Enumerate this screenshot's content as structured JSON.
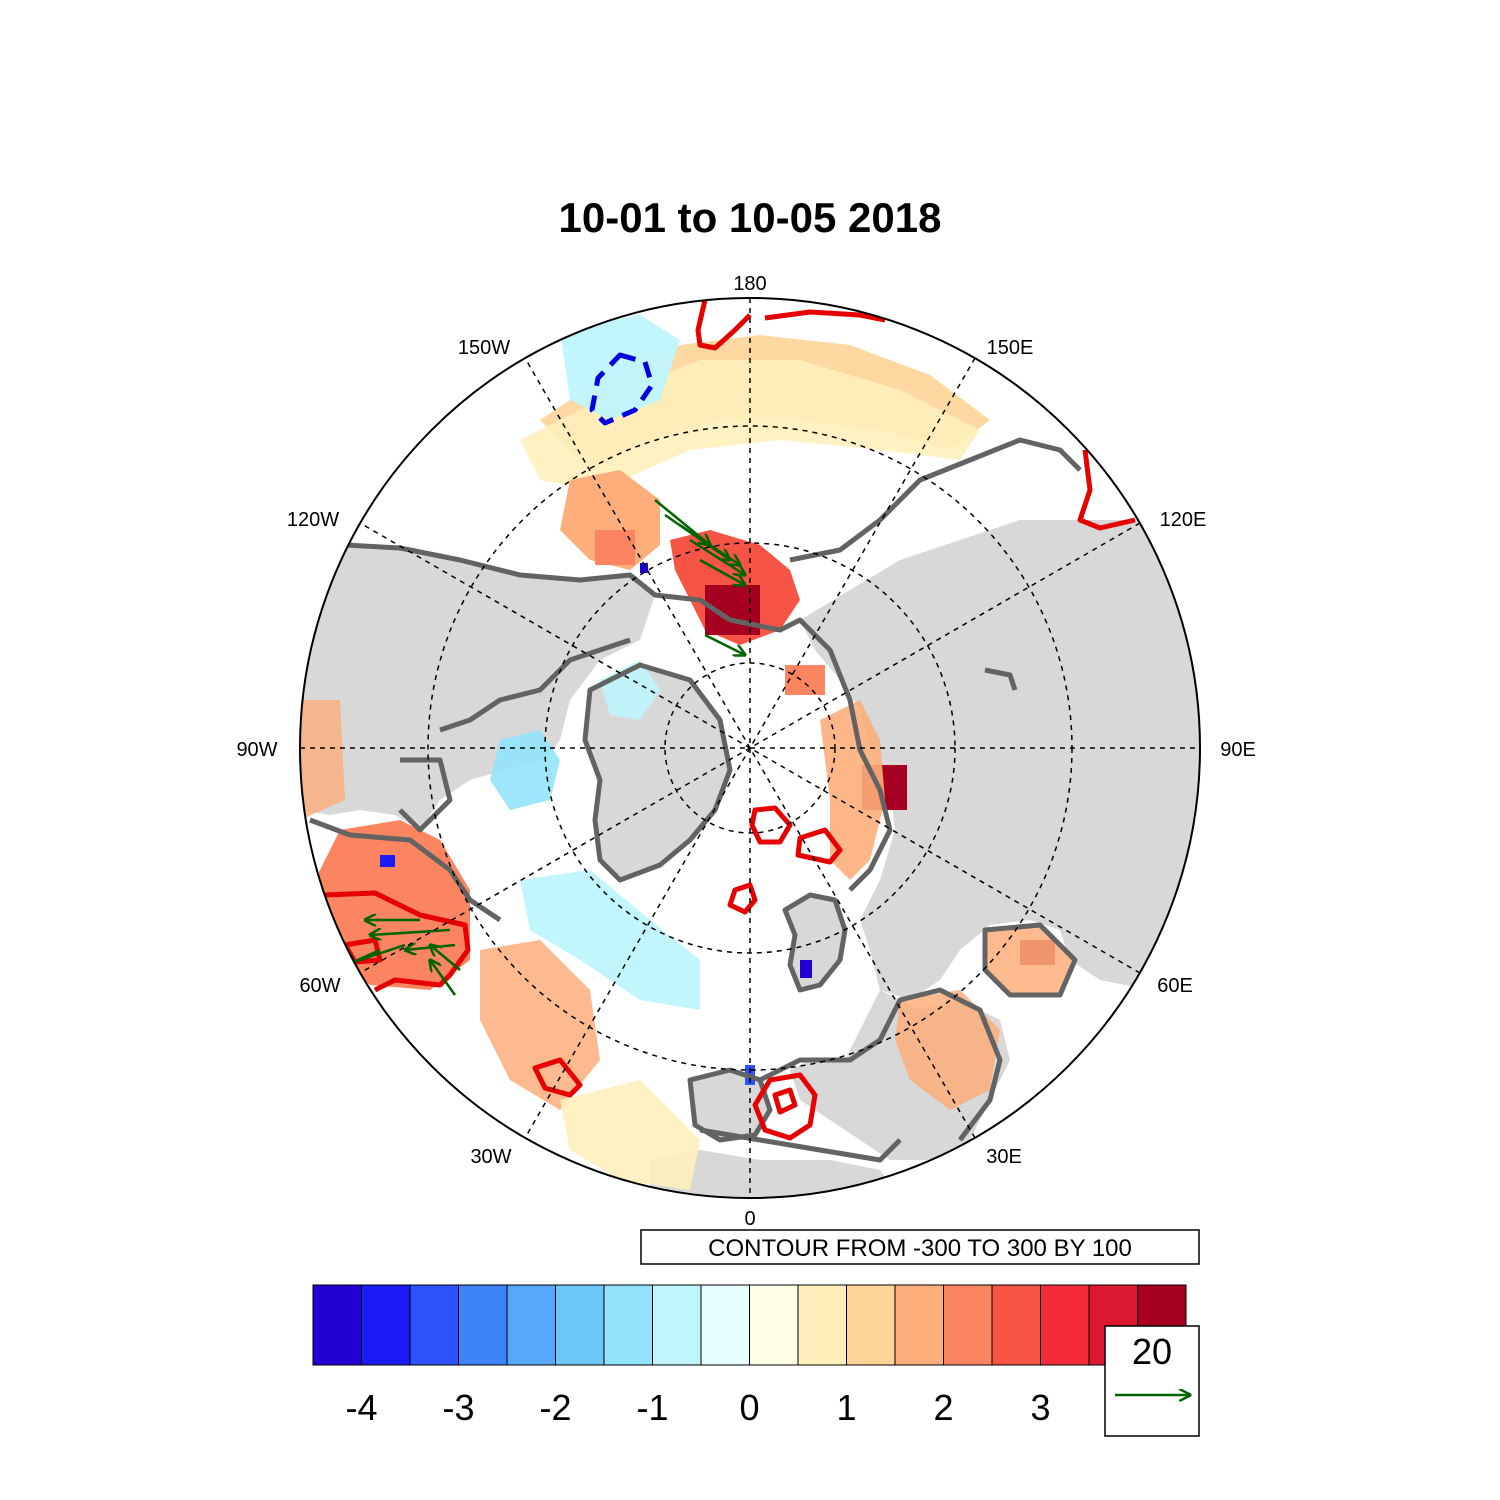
{
  "title": "10-01 to 10-05 2018",
  "longitude_labels": {
    "lon_180": "180",
    "lon_150e": "150E",
    "lon_120e": "120E",
    "lon_90e": "90E",
    "lon_60e": "60E",
    "lon_30e": "30E",
    "lon_0": "0",
    "lon_30w": "30W",
    "lon_60w": "60W",
    "lon_90w": "90W",
    "lon_120w": "120W",
    "lon_150w": "150W"
  },
  "contour_note": "CONTOUR FROM -300 TO 300 BY 100",
  "colorbar": {
    "ticks": [
      "-4",
      "-3",
      "-2",
      "-1",
      "0",
      "1",
      "2",
      "3"
    ],
    "colors": [
      "#2200d4",
      "#1b1cf5",
      "#2b52fb",
      "#3d84fb",
      "#55a8fc",
      "#6cc7fb",
      "#94e3fc",
      "#bff5fd",
      "#e6feff",
      "#fffee6",
      "#fff0bb",
      "#fed497",
      "#fdae7a",
      "#fb8560",
      "#f65546",
      "#f42b38",
      "#dc1730",
      "#a5001f"
    ]
  },
  "vector_reference": {
    "value": "20",
    "color": "#006400"
  },
  "colors": {
    "land": "#d8d8d8",
    "coastline": "#636363",
    "positive_contour": "#e60000",
    "negative_contour": "#0000e0",
    "vector": "#006400"
  }
}
